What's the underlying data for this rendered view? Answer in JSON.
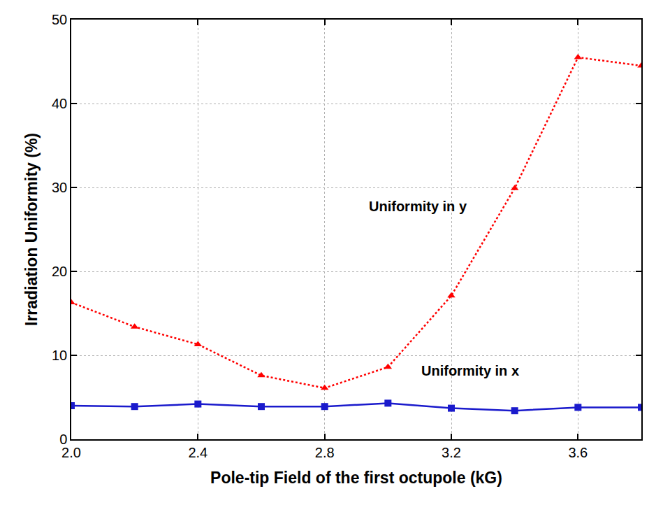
{
  "chart_data": {
    "type": "line",
    "x_label": "Pole-tip Field of the first octupole (kG)",
    "y_label": "Irradiation Uniformity (%)",
    "x": [
      2.0,
      2.2,
      2.4,
      2.6,
      2.8,
      3.0,
      3.2,
      3.4,
      3.6,
      3.8
    ],
    "series": [
      {
        "name": "Uniformity in y",
        "color": "#ff0000",
        "marker": "triangle-up",
        "line_style": "dot",
        "values": [
          16.3,
          13.4,
          11.3,
          7.6,
          6.1,
          8.6,
          17.1,
          29.9,
          45.5,
          44.5
        ]
      },
      {
        "name": "Uniformity in x",
        "color": "#1a1acc",
        "marker": "square",
        "line_style": "solid",
        "values": [
          4.0,
          3.9,
          4.2,
          3.9,
          3.9,
          4.3,
          3.7,
          3.4,
          3.8,
          3.8
        ]
      }
    ],
    "xlim": [
      2.0,
      3.8
    ],
    "xticks": [
      {
        "value": 2.0,
        "label": "2.0"
      },
      2.4,
      2.8,
      3.2,
      3.6
    ],
    "ylim": [
      0,
      50
    ],
    "yticks": [
      0,
      10,
      20,
      30,
      40,
      50
    ],
    "grid": true
  }
}
